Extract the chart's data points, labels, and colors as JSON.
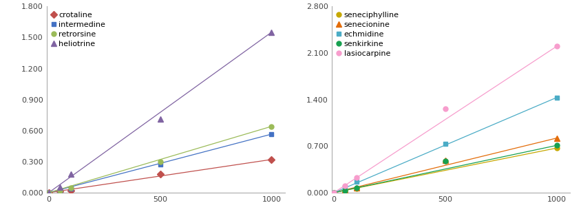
{
  "left": {
    "series": [
      {
        "label": "crotaline",
        "color": "#c0504d",
        "marker": "D",
        "marker_size": 5,
        "x": [
          0,
          50,
          100,
          500,
          1000
        ],
        "y": [
          0.0,
          0.01,
          0.02,
          0.18,
          0.32
        ],
        "line_x": [
          0,
          1000
        ],
        "line_y": [
          0.0,
          0.32
        ]
      },
      {
        "label": "intermedine",
        "color": "#4472c4",
        "marker": "s",
        "marker_size": 5,
        "x": [
          0,
          50,
          100,
          500,
          1000
        ],
        "y": [
          0.0,
          0.02,
          0.04,
          0.27,
          0.565
        ],
        "line_x": [
          0,
          1000
        ],
        "line_y": [
          0.0,
          0.565
        ]
      },
      {
        "label": "retrorsine",
        "color": "#9bbb59",
        "marker": "o",
        "marker_size": 5,
        "x": [
          0,
          50,
          100,
          500,
          1000
        ],
        "y": [
          0.0,
          0.022,
          0.045,
          0.3,
          0.64
        ],
        "line_x": [
          0,
          1000
        ],
        "line_y": [
          0.0,
          0.64
        ]
      },
      {
        "label": "heliotrine",
        "color": "#8064a2",
        "marker": "^",
        "marker_size": 6,
        "x": [
          0,
          50,
          100,
          500,
          1000
        ],
        "y": [
          0.0,
          0.05,
          0.18,
          0.71,
          1.55
        ],
        "line_x": [
          0,
          1000
        ],
        "line_y": [
          0.0,
          1.55
        ]
      }
    ],
    "ylim": [
      0.0,
      1.8
    ],
    "yticks": [
      0.0,
      0.3,
      0.6,
      0.9,
      1.2,
      1.5,
      1.8
    ],
    "ytick_labels": [
      "0.000",
      "0.300",
      "0.600",
      "0.900",
      "1.200",
      "1.500",
      "1.800"
    ],
    "xlim": [
      -10,
      1060
    ],
    "xticks": [
      0,
      500,
      1000
    ]
  },
  "right": {
    "series": [
      {
        "label": "seneciphylline",
        "color": "#c6a800",
        "marker": "o",
        "marker_size": 5,
        "x": [
          0,
          50,
          100,
          500,
          1000
        ],
        "y": [
          0.0,
          0.03,
          0.06,
          0.47,
          0.67
        ],
        "line_x": [
          0,
          1000
        ],
        "line_y": [
          0.0,
          0.67
        ]
      },
      {
        "label": "senecionine",
        "color": "#e36c09",
        "marker": "^",
        "marker_size": 6,
        "x": [
          0,
          50,
          100,
          500,
          1000
        ],
        "y": [
          0.0,
          0.038,
          0.075,
          0.49,
          0.82
        ],
        "line_x": [
          0,
          1000
        ],
        "line_y": [
          0.0,
          0.82
        ]
      },
      {
        "label": "echmidine",
        "color": "#4bacc6",
        "marker": "s",
        "marker_size": 5,
        "x": [
          0,
          50,
          100,
          500,
          1000
        ],
        "y": [
          0.0,
          0.08,
          0.16,
          0.73,
          1.43
        ],
        "line_x": [
          0,
          1000
        ],
        "line_y": [
          0.0,
          1.43
        ]
      },
      {
        "label": "senkirkine",
        "color": "#17a050",
        "marker": "o",
        "marker_size": 5,
        "x": [
          0,
          50,
          100,
          500,
          1000
        ],
        "y": [
          0.0,
          0.035,
          0.07,
          0.48,
          0.71
        ],
        "line_x": [
          0,
          1000
        ],
        "line_y": [
          0.0,
          0.71
        ]
      },
      {
        "label": "lasiocarpine",
        "color": "#f79dcd",
        "marker": "o",
        "marker_size": 5,
        "x": [
          0,
          50,
          100,
          500,
          1000
        ],
        "y": [
          0.0,
          0.1,
          0.23,
          1.26,
          2.2
        ],
        "line_x": [
          0,
          1000
        ],
        "line_y": [
          0.0,
          2.2
        ]
      }
    ],
    "ylim": [
      0.0,
      2.8
    ],
    "yticks": [
      0.0,
      0.7,
      1.4,
      2.1,
      2.8
    ],
    "ytick_labels": [
      "0.000",
      "0.700",
      "1.400",
      "2.100",
      "2.800"
    ],
    "xlim": [
      -10,
      1060
    ],
    "xticks": [
      0,
      500,
      1000
    ]
  },
  "legend_fontsize": 8.0,
  "tick_fontsize": 8.0,
  "line_width": 0.9,
  "background_color": "#ffffff"
}
